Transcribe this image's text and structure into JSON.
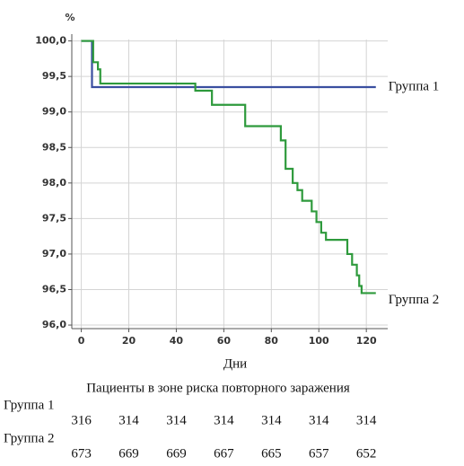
{
  "chart_data": {
    "type": "line",
    "y_label": "%",
    "x_label": "Дни",
    "xlim": [
      -4,
      129
    ],
    "xticks": [
      0,
      20,
      40,
      60,
      80,
      100,
      120
    ],
    "ylim": [
      95.95,
      100.02
    ],
    "yticks": [
      {
        "value": 96,
        "label": "96,0"
      },
      {
        "value": 96.5,
        "label": "96,5"
      },
      {
        "value": 97,
        "label": "97,0"
      },
      {
        "value": 97.5,
        "label": "97,5"
      },
      {
        "value": 98,
        "label": "98,0"
      },
      {
        "value": 98.5,
        "label": "98,5"
      },
      {
        "value": 99,
        "label": "99,0"
      },
      {
        "value": 99.5,
        "label": "99,5"
      },
      {
        "value": 100,
        "label": "100,0"
      }
    ],
    "grid": true,
    "series": [
      {
        "name": "Группа 1",
        "color": "#3a4fa0",
        "x": [
          0,
          4.5,
          4.5,
          124
        ],
        "values": [
          100,
          100,
          99.35,
          99.35
        ]
      },
      {
        "name": "Группа 2",
        "color": "#2e9a3c",
        "x": [
          0,
          5,
          5,
          7,
          7,
          8,
          8,
          48,
          48,
          55,
          55,
          69,
          69,
          84,
          84,
          86,
          86,
          89,
          89,
          91,
          91,
          93,
          93,
          97,
          97,
          99,
          99,
          101,
          101,
          103,
          103,
          112,
          112,
          114,
          114,
          116,
          116,
          117,
          117,
          118,
          118,
          124
        ],
        "values": [
          100,
          100,
          99.7,
          99.7,
          99.6,
          99.6,
          99.4,
          99.4,
          99.3,
          99.3,
          99.1,
          99.1,
          98.8,
          98.8,
          98.6,
          98.6,
          98.2,
          98.2,
          98.0,
          98.0,
          97.9,
          97.9,
          97.75,
          97.75,
          97.6,
          97.6,
          97.45,
          97.45,
          97.3,
          97.3,
          97.2,
          97.2,
          97.0,
          97.0,
          96.85,
          96.85,
          96.7,
          96.7,
          96.55,
          96.55,
          96.45,
          96.45
        ]
      }
    ],
    "risk_table": {
      "title": "Пациенты в зоне риска повторного заражения",
      "rows": [
        {
          "label": "Группа 1",
          "values": [
            316,
            314,
            314,
            314,
            314,
            314,
            314
          ]
        },
        {
          "label": "Группа 2",
          "values": [
            673,
            669,
            669,
            667,
            665,
            657,
            652
          ]
        }
      ]
    }
  }
}
